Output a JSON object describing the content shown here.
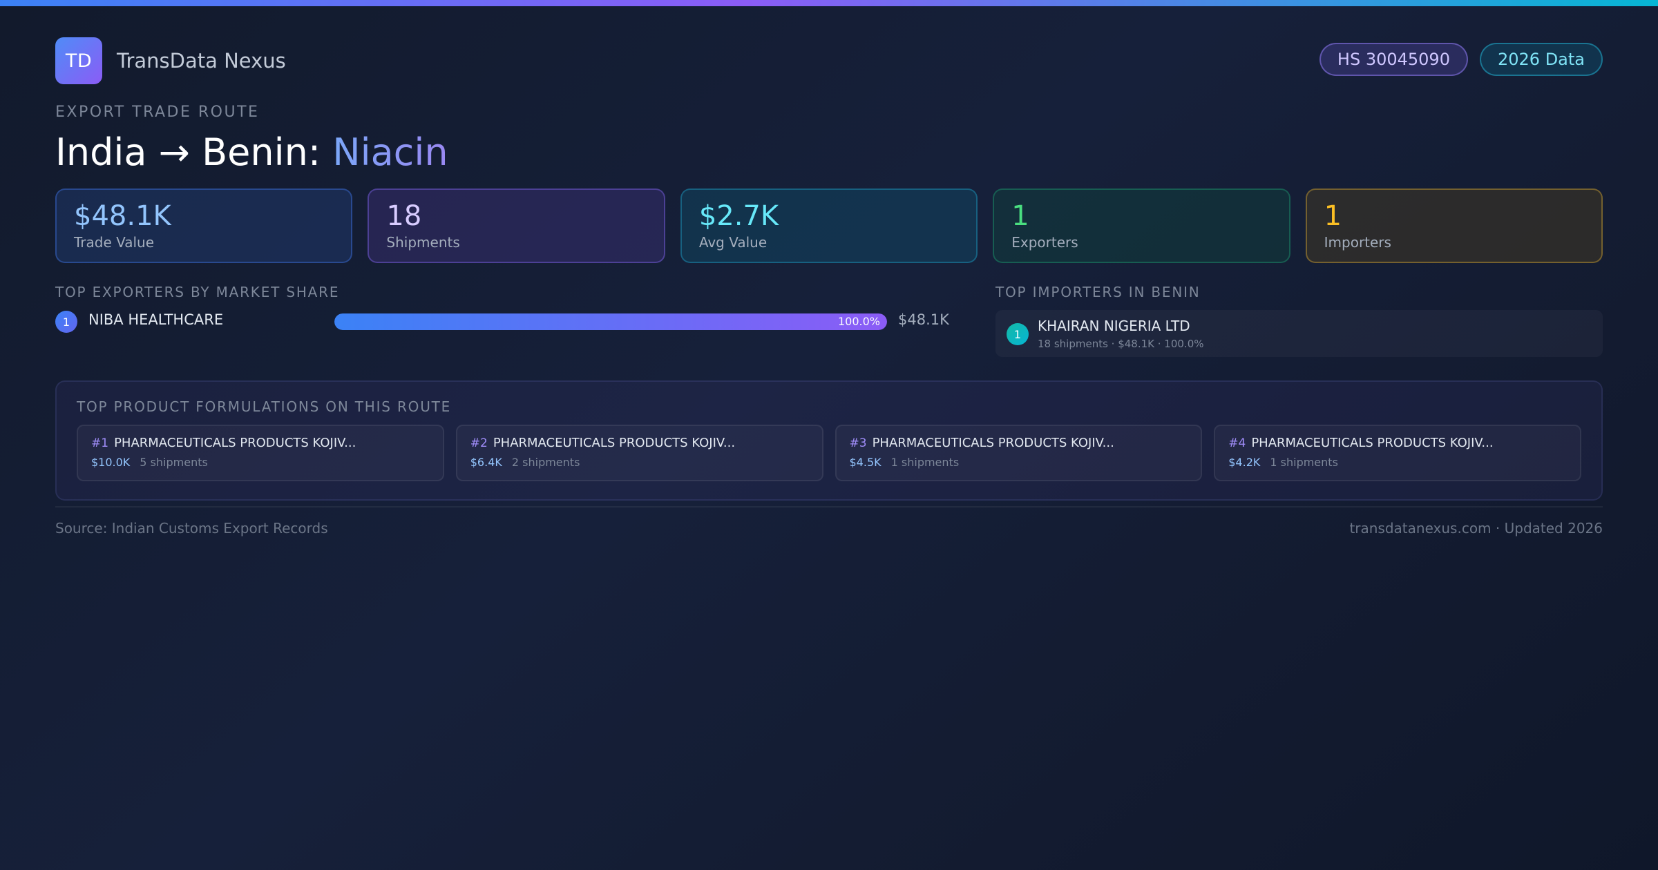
{
  "brand": {
    "logo_text": "TD",
    "name": "TransData Nexus"
  },
  "badges": {
    "hs_code": "HS 30045090",
    "data_year": "2026 Data"
  },
  "route": {
    "eyebrow": "EXPORT TRADE ROUTE",
    "title_prefix": "India → Benin: ",
    "product": "Niacin"
  },
  "stats": [
    {
      "value": "$48.1K",
      "label": "Trade Value",
      "color": "#93c5fd"
    },
    {
      "value": "18",
      "label": "Shipments",
      "color": "#d8ccff"
    },
    {
      "value": "$2.7K",
      "label": "Avg Value",
      "color": "#67e8f9"
    },
    {
      "value": "1",
      "label": "Exporters",
      "color": "#4ade80"
    },
    {
      "value": "1",
      "label": "Importers",
      "color": "#fbbf24"
    }
  ],
  "exporters": {
    "title": "TOP EXPORTERS BY MARKET SHARE",
    "items": [
      {
        "rank": "1",
        "name": "NIBA HEALTHCARE",
        "share_percent": 100.0,
        "share_label": "100.0%",
        "value": "$48.1K"
      }
    ]
  },
  "importers": {
    "title": "TOP IMPORTERS IN BENIN",
    "items": [
      {
        "rank": "1",
        "name": "KHAIRAN NIGERIA LTD",
        "meta": "18 shipments · $48.1K · 100.0%"
      }
    ]
  },
  "products": {
    "title": "TOP PRODUCT FORMULATIONS ON THIS ROUTE",
    "items": [
      {
        "rank": "#1",
        "name": "PHARMACEUTICALS PRODUCTS KOJIV...",
        "value": "$10.0K",
        "shipments": "5 shipments"
      },
      {
        "rank": "#2",
        "name": "PHARMACEUTICALS PRODUCTS KOJIV...",
        "value": "$6.4K",
        "shipments": "2 shipments"
      },
      {
        "rank": "#3",
        "name": "PHARMACEUTICALS PRODUCTS KOJIV...",
        "value": "$4.5K",
        "shipments": "1 shipments"
      },
      {
        "rank": "#4",
        "name": "PHARMACEUTICALS PRODUCTS KOJIV...",
        "value": "$4.2K",
        "shipments": "1 shipments"
      }
    ]
  },
  "footer": {
    "source": "Source: Indian Customs Export Records",
    "site": "transdatanexus.com · Updated 2026"
  }
}
